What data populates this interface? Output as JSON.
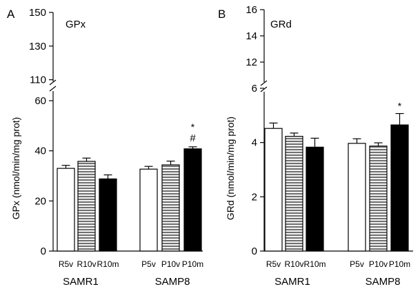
{
  "chart_data": [
    {
      "type": "bar",
      "panel_label": "A",
      "title": "GPx",
      "ylabel": "GPx (nmol/min/mg prot)",
      "axis_break": true,
      "ylim_lower": [
        0,
        60
      ],
      "ylim_upper": [
        100,
        150
      ],
      "yticks_lower": [
        "0",
        "20",
        "40",
        "60"
      ],
      "yticks_upper": [
        "110",
        "130",
        "150"
      ],
      "groups": [
        {
          "name": "SAMR1",
          "categories": [
            "R5v",
            "R10v",
            "R10m"
          ]
        },
        {
          "name": "SAMP8",
          "categories": [
            "P5v",
            "P10v",
            "P10m"
          ]
        }
      ],
      "categories": [
        "R5v",
        "R10v",
        "R10m",
        "P5v",
        "P10v",
        "P10m"
      ],
      "values": [
        33,
        35.8,
        28.8,
        32.7,
        34.4,
        40.8
      ],
      "errors": [
        1.2,
        1.3,
        1.6,
        1.1,
        1.5,
        0.8
      ],
      "fills": [
        "white",
        "striped",
        "black",
        "white",
        "striped",
        "black"
      ],
      "annotations": [
        [
          "",
          ""
        ],
        [
          "",
          ""
        ],
        [
          "",
          ""
        ],
        [
          "",
          ""
        ],
        [
          "",
          ""
        ],
        [
          "*",
          "#"
        ]
      ]
    },
    {
      "type": "bar",
      "panel_label": "B",
      "title": "GRd",
      "ylabel": "GRd (nmol/min/mg prot)",
      "axis_break": true,
      "ylim_lower": [
        0,
        6
      ],
      "ylim_upper": [
        10,
        16
      ],
      "yticks_lower": [
        "0",
        "2",
        "4",
        "6"
      ],
      "yticks_upper": [
        "12",
        "14",
        "16"
      ],
      "groups": [
        {
          "name": "SAMR1",
          "categories": [
            "R5v",
            "R10v",
            "R10m"
          ]
        },
        {
          "name": "SAMP8",
          "categories": [
            "P5v",
            "P10v",
            "P10m"
          ]
        }
      ],
      "categories": [
        "R5v",
        "R10v",
        "R10m",
        "P5v",
        "P10v",
        "P10m"
      ],
      "values": [
        4.52,
        4.23,
        3.83,
        3.97,
        3.87,
        4.65
      ],
      "errors": [
        0.2,
        0.12,
        0.33,
        0.17,
        0.12,
        0.42
      ],
      "fills": [
        "white",
        "striped",
        "black",
        "white",
        "striped",
        "black"
      ],
      "annotations": [
        [
          "",
          ""
        ],
        [
          "",
          ""
        ],
        [
          "",
          ""
        ],
        [
          "",
          ""
        ],
        [
          "",
          ""
        ],
        [
          "*",
          ""
        ]
      ]
    }
  ],
  "colors": {
    "white_bar": "#ffffff",
    "black_bar": "#000000",
    "stripe": "#707070",
    "stripe_bg": "#f2f2f2"
  }
}
